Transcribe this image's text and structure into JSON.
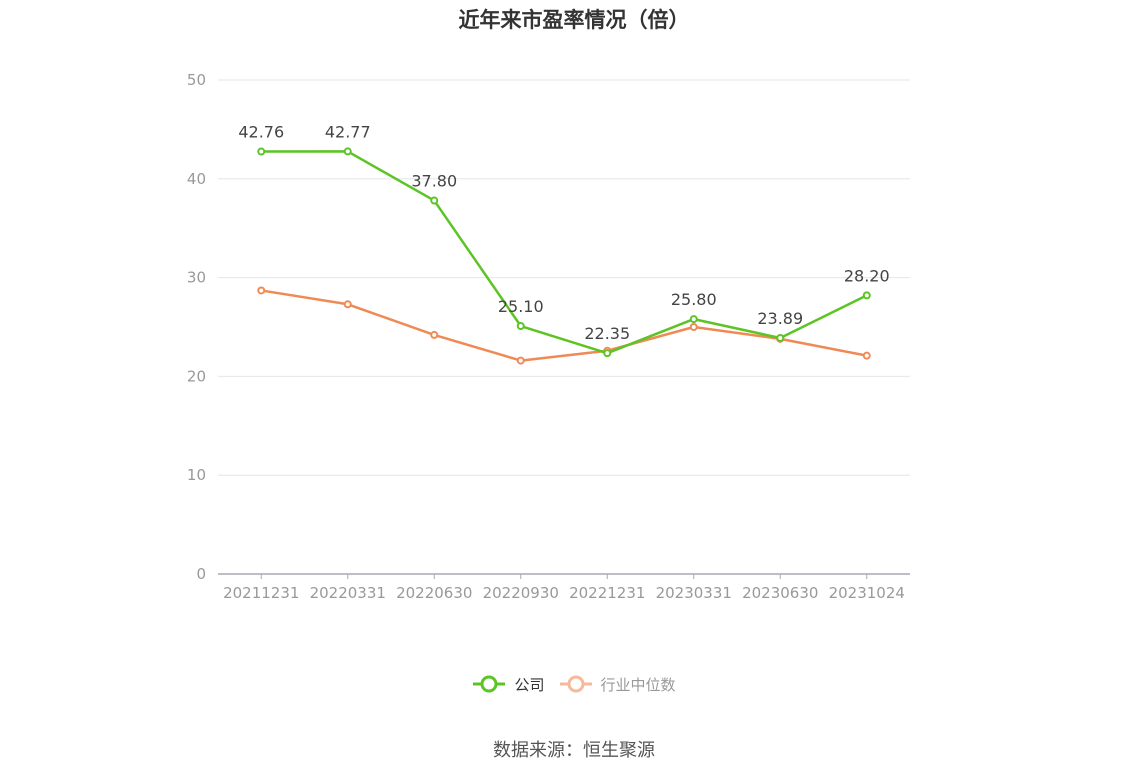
{
  "title": "近年来市盈率情况（倍）",
  "source": "数据来源：恒生聚源",
  "colors": {
    "company": "#5cc424",
    "industry": "#f08a55",
    "industry_legend": "#f8b99a",
    "axis_text": "#999999",
    "grid": "#e6e6e6",
    "axis_line": "#a8a8b8",
    "label_text": "#444444"
  },
  "chart_data": {
    "type": "line",
    "title": "近年来市盈率情况（倍）",
    "xlabel": "",
    "ylabel": "",
    "categories": [
      "20211231",
      "20220331",
      "20220630",
      "20220930",
      "20221231",
      "20230331",
      "20230630",
      "20231024"
    ],
    "ylim": [
      0,
      50
    ],
    "yticks": [
      0,
      10,
      20,
      30,
      40,
      50
    ],
    "grid": true,
    "legend_position": "bottom",
    "series": [
      {
        "name": "公司",
        "values": [
          42.76,
          42.77,
          37.8,
          25.1,
          22.35,
          25.8,
          23.89,
          28.2
        ],
        "labels": [
          "42.76",
          "42.77",
          "37.80",
          "25.10",
          "22.35",
          "25.80",
          "23.89",
          "28.20"
        ]
      },
      {
        "name": "行业中位数",
        "values": [
          28.7,
          27.3,
          24.2,
          21.6,
          22.6,
          25.0,
          23.8,
          22.1
        ]
      }
    ]
  }
}
